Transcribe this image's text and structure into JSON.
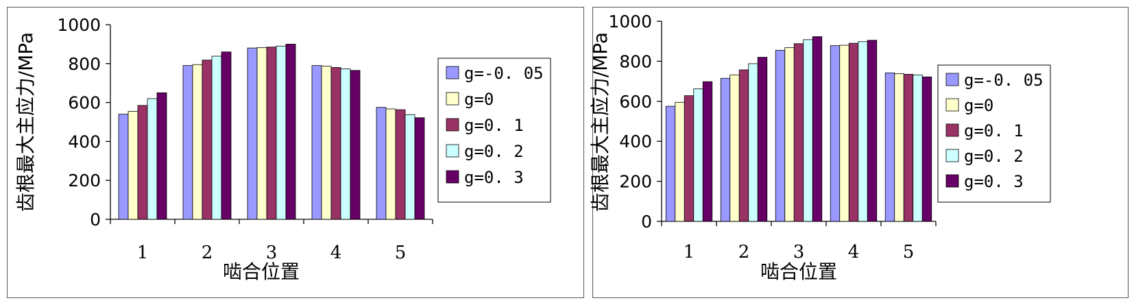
{
  "chart_data": [
    {
      "type": "bar",
      "xlabel": "啮合位置",
      "ylabel": "齿根最大主应力/MPa",
      "ylim": [
        0,
        1000
      ],
      "yticks": [
        0,
        200,
        400,
        600,
        800,
        1000
      ],
      "categories": [
        "1",
        "2",
        "3",
        "4",
        "5"
      ],
      "legend_position": "right",
      "series": [
        {
          "name": "g=-0. 05",
          "color": "#9999ff",
          "values": [
            540,
            790,
            880,
            790,
            575
          ]
        },
        {
          "name": "g=0",
          "color": "#ffffcc",
          "values": [
            555,
            795,
            882,
            787,
            567
          ]
        },
        {
          "name": "g=0. 1",
          "color": "#993366",
          "values": [
            585,
            818,
            885,
            780,
            563
          ]
        },
        {
          "name": "g=0. 2",
          "color": "#ccffff",
          "values": [
            620,
            838,
            890,
            773,
            538
          ]
        },
        {
          "name": "g=0. 3",
          "color": "#660066",
          "values": [
            650,
            860,
            900,
            765,
            522
          ]
        }
      ]
    },
    {
      "type": "bar",
      "xlabel": "啮合位置",
      "ylabel": "齿根最大主应力/MPa",
      "ylim": [
        0,
        1000
      ],
      "yticks": [
        0,
        200,
        400,
        600,
        800,
        1000
      ],
      "categories": [
        "1",
        "2",
        "3",
        "4",
        "5"
      ],
      "legend_position": "right",
      "series": [
        {
          "name": "g=-0. 05",
          "color": "#9999ff",
          "values": [
            575,
            715,
            855,
            878,
            742
          ]
        },
        {
          "name": "g=0",
          "color": "#ffffcc",
          "values": [
            595,
            732,
            868,
            880,
            738
          ]
        },
        {
          "name": "g=0. 1",
          "color": "#993366",
          "values": [
            628,
            757,
            888,
            890,
            735
          ]
        },
        {
          "name": "g=0. 2",
          "color": "#ccffff",
          "values": [
            662,
            788,
            908,
            898,
            732
          ]
        },
        {
          "name": "g=0. 3",
          "color": "#660066",
          "values": [
            698,
            820,
            923,
            905,
            722
          ]
        }
      ]
    }
  ]
}
